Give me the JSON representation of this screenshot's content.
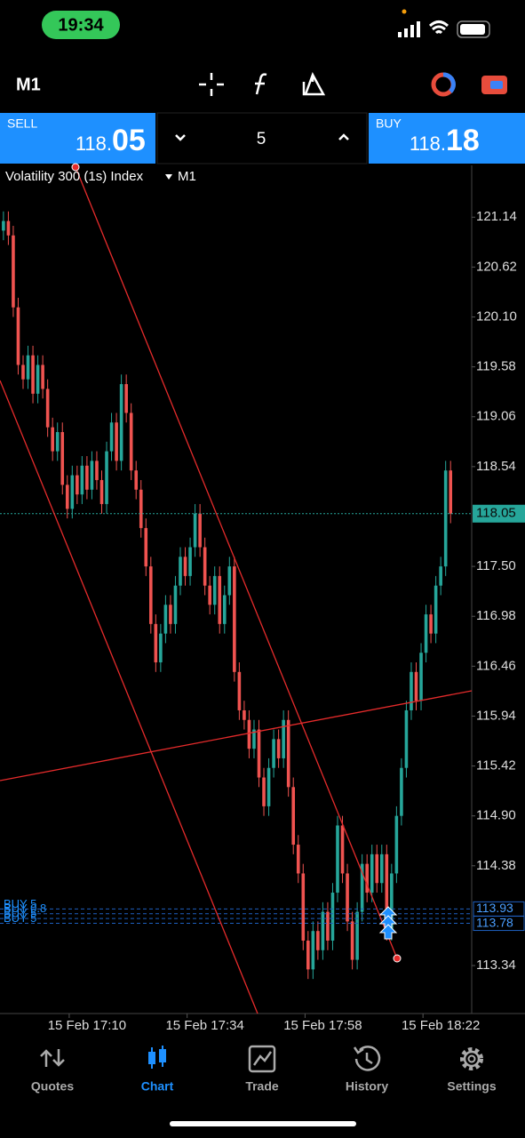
{
  "status_bar": {
    "time": "19:34"
  },
  "toolbar": {
    "timeframe": "M1"
  },
  "trade_panel": {
    "sell_label": "SELL",
    "sell_price_main": "118.",
    "sell_price_pips": "05",
    "lot": "5",
    "buy_label": "BUY",
    "buy_price_main": "118.",
    "buy_price_pips": "18"
  },
  "chart_data": {
    "type": "candlestick",
    "title": "Volatility 300 (1s) Index",
    "timeframe": "M1",
    "up_color": "#26a69a",
    "down_color": "#ef5350",
    "open": [
      121.0,
      121.1,
      120.95,
      120.2,
      119.6,
      119.45,
      119.7,
      119.3,
      119.6,
      119.35,
      118.95,
      118.7,
      118.9,
      118.35,
      118.1,
      118.45,
      118.25,
      118.55,
      118.3,
      118.6,
      118.4,
      118.15,
      118.7,
      119.0,
      118.6,
      119.4,
      119.1,
      118.5,
      118.3,
      117.9,
      117.5,
      116.9,
      116.5,
      116.8,
      117.1,
      116.9,
      117.3,
      117.6,
      117.4,
      117.7,
      118.05,
      117.7,
      117.3,
      117.1,
      117.4,
      116.9,
      117.2,
      117.5,
      116.4,
      116.0,
      115.9,
      115.6,
      115.8,
      115.3,
      115.0,
      115.4,
      115.7,
      115.5,
      115.9,
      115.2,
      114.6,
      114.3,
      113.6,
      113.3,
      113.7,
      113.5,
      113.9,
      113.6,
      114.1,
      114.8,
      114.3,
      113.8,
      113.4,
      113.9,
      114.4,
      114.1,
      114.5,
      114.2,
      114.5,
      113.7,
      114.3,
      114.9,
      115.4,
      116.0,
      116.4,
      116.1,
      116.6,
      117.0,
      116.8,
      117.3,
      117.5,
      118.5
    ],
    "high": [
      121.2,
      121.2,
      121.05,
      120.3,
      119.7,
      119.8,
      119.8,
      119.7,
      119.7,
      119.45,
      119.05,
      119.0,
      119.0,
      118.45,
      118.55,
      118.55,
      118.65,
      118.65,
      118.7,
      118.7,
      118.5,
      118.8,
      119.1,
      119.1,
      119.5,
      119.5,
      119.2,
      118.6,
      118.4,
      118.0,
      117.6,
      117.0,
      116.9,
      117.2,
      117.2,
      117.4,
      117.7,
      117.7,
      117.8,
      118.15,
      118.15,
      117.8,
      117.4,
      117.5,
      117.5,
      117.3,
      117.6,
      117.6,
      116.5,
      116.1,
      116.0,
      115.9,
      115.9,
      115.4,
      115.5,
      115.8,
      115.8,
      116.0,
      116.0,
      115.3,
      114.7,
      114.4,
      113.7,
      113.8,
      113.8,
      114.0,
      114.0,
      114.2,
      114.9,
      114.9,
      114.4,
      113.9,
      114.0,
      114.5,
      114.5,
      114.6,
      114.6,
      114.6,
      114.6,
      114.4,
      115.0,
      115.5,
      116.1,
      116.5,
      116.5,
      116.7,
      117.1,
      117.1,
      117.4,
      117.6,
      118.6,
      118.6
    ],
    "low": [
      120.9,
      120.85,
      120.1,
      119.5,
      119.35,
      119.35,
      119.2,
      119.2,
      119.25,
      118.85,
      118.6,
      118.6,
      118.25,
      118.0,
      118.0,
      118.15,
      118.15,
      118.2,
      118.2,
      118.3,
      118.05,
      118.05,
      118.6,
      118.5,
      118.5,
      119.0,
      118.4,
      118.2,
      117.8,
      117.4,
      116.8,
      116.4,
      116.4,
      116.7,
      116.8,
      116.8,
      117.2,
      117.3,
      117.3,
      117.6,
      117.6,
      117.2,
      117.0,
      117.0,
      116.8,
      116.8,
      117.1,
      116.3,
      115.9,
      115.8,
      115.5,
      115.5,
      115.2,
      114.9,
      114.9,
      115.3,
      115.4,
      115.4,
      115.1,
      114.5,
      114.2,
      113.5,
      113.2,
      113.2,
      113.4,
      113.4,
      113.5,
      113.5,
      114.0,
      114.2,
      113.7,
      113.3,
      113.3,
      113.8,
      114.0,
      114.0,
      114.1,
      114.1,
      113.6,
      113.6,
      114.2,
      114.8,
      115.3,
      115.9,
      116.0,
      116.0,
      116.5,
      116.7,
      116.7,
      117.2,
      117.4,
      117.95
    ],
    "close": [
      121.1,
      120.95,
      120.2,
      119.6,
      119.45,
      119.7,
      119.3,
      119.6,
      119.35,
      118.95,
      118.7,
      118.9,
      118.35,
      118.1,
      118.45,
      118.25,
      118.55,
      118.3,
      118.6,
      118.4,
      118.15,
      118.7,
      119.0,
      118.6,
      119.4,
      119.1,
      118.5,
      118.3,
      117.9,
      117.5,
      116.9,
      116.5,
      116.8,
      117.1,
      116.9,
      117.3,
      117.6,
      117.4,
      117.7,
      118.05,
      117.7,
      117.3,
      117.1,
      117.4,
      116.9,
      117.2,
      117.5,
      116.4,
      116.0,
      115.9,
      115.6,
      115.8,
      115.3,
      115.0,
      115.4,
      115.7,
      115.5,
      115.9,
      115.2,
      114.6,
      114.3,
      113.6,
      113.3,
      113.7,
      113.5,
      113.9,
      113.6,
      114.1,
      114.8,
      114.3,
      113.8,
      113.4,
      113.9,
      114.4,
      114.1,
      114.5,
      114.2,
      114.5,
      113.7,
      114.3,
      114.9,
      115.4,
      116.0,
      116.4,
      116.1,
      116.6,
      117.0,
      116.8,
      117.3,
      117.5,
      118.5,
      118.05
    ],
    "xlim": [
      -0.7,
      95.3
    ],
    "xticks": [
      {
        "value": 17,
        "label": "15 Feb 17:10"
      },
      {
        "value": 41,
        "label": "15 Feb 17:34"
      },
      {
        "value": 65,
        "label": "15 Feb 17:58"
      },
      {
        "value": 89,
        "label": "15 Feb 18:22"
      }
    ],
    "ylim": [
      112.84,
      121.68
    ],
    "yticks": [
      121.14,
      120.62,
      {
        "value": 120.1,
        "label": "120.10"
      },
      119.58,
      119.06,
      118.54,
      {
        "value": 117.5,
        "label": "117.50"
      },
      116.98,
      116.46,
      115.94,
      115.42,
      {
        "value": 114.9,
        "label": "114.90"
      },
      114.38,
      113.34
    ],
    "current_price": 118.05,
    "order_lines": [
      {
        "label": "BUY 5",
        "price": 113.93
      },
      {
        "label": "BUY 0.8",
        "price": 113.88
      },
      {
        "label": "BUY 5",
        "price": 113.83
      },
      {
        "label": "BUY 5",
        "price": 113.78
      }
    ],
    "order_price_labels": [
      113.93,
      113.78
    ]
  },
  "nav": {
    "items": [
      "Quotes",
      "Chart",
      "Trade",
      "History",
      "Settings"
    ]
  }
}
